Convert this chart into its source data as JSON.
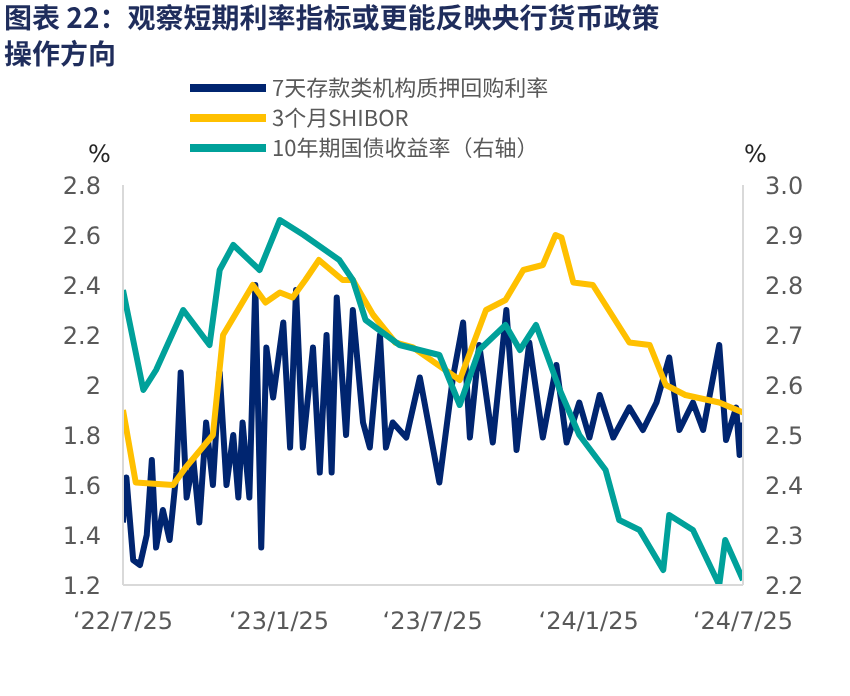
{
  "chart_data": {
    "type": "line",
    "title": "图表 22：观察短期利率指标或更能反映央行货币政策操作方向",
    "ylabel": "%",
    "y2label": "%",
    "xlim": [
      "2022-07-25",
      "2024-07-25"
    ],
    "xticks": [
      {
        "value": "2022-07-25",
        "label": "‘22/7/25"
      },
      {
        "value": "2023-01-25",
        "label": "‘23/1/25"
      },
      {
        "value": "2023-07-25",
        "label": "‘23/7/25"
      },
      {
        "value": "2024-01-25",
        "label": "‘24/1/25"
      },
      {
        "value": "2024-07-25",
        "label": "‘24/7/25"
      }
    ],
    "ylim": [
      1.2,
      2.8
    ],
    "yticks": [
      1.2,
      1.4,
      1.6,
      1.8,
      2,
      2.2,
      2.4,
      2.6,
      2.8
    ],
    "y2lim": [
      2.2,
      3.0
    ],
    "y2ticks": [
      {
        "value": 2.2,
        "label": "2.2"
      },
      {
        "value": 2.3,
        "label": "2.3"
      },
      {
        "value": 2.4,
        "label": "2.4"
      },
      {
        "value": 2.5,
        "label": "2.5"
      },
      {
        "value": 2.6,
        "label": "2.6"
      },
      {
        "value": 2.7,
        "label": "2.7"
      },
      {
        "value": 2.8,
        "label": "2.8"
      },
      {
        "value": 2.9,
        "label": "2.9"
      },
      {
        "value": 3.0,
        "label": "3.0"
      }
    ],
    "grid": false,
    "legend": "top left",
    "line_style": "solid",
    "marker": "none",
    "series": [
      {
        "name": "7天存款类机构质押回购利率",
        "color": "#002570",
        "x": [
          "2022-07-25",
          "2022-07-29",
          "2022-08-06",
          "2022-08-14",
          "2022-08-22",
          "2022-08-28",
          "2022-09-02",
          "2022-09-10",
          "2022-09-18",
          "2022-09-26",
          "2022-10-01",
          "2022-10-08",
          "2022-10-16",
          "2022-10-23",
          "2022-10-31",
          "2022-11-08",
          "2022-11-16",
          "2022-11-24",
          "2022-12-02",
          "2022-12-08",
          "2022-12-13",
          "2022-12-21",
          "2022-12-28",
          "2023-01-04",
          "2023-01-10",
          "2023-01-18",
          "2023-01-30",
          "2023-02-07",
          "2023-02-14",
          "2023-02-22",
          "2023-03-06",
          "2023-03-14",
          "2023-03-22",
          "2023-03-28",
          "2023-04-03",
          "2023-04-14",
          "2023-04-22",
          "2023-05-04",
          "2023-05-12",
          "2023-05-24",
          "2023-05-31",
          "2023-06-08",
          "2023-06-24",
          "2023-07-10",
          "2023-08-02",
          "2023-08-18",
          "2023-08-30",
          "2023-09-07",
          "2023-09-18",
          "2023-10-04",
          "2023-10-20",
          "2023-11-01",
          "2023-11-16",
          "2023-12-02",
          "2023-12-18",
          "2023-12-30",
          "2024-01-14",
          "2024-01-26",
          "2024-02-07",
          "2024-02-23",
          "2024-03-13",
          "2024-03-29",
          "2024-04-14",
          "2024-04-29",
          "2024-05-11",
          "2024-05-27",
          "2024-06-08",
          "2024-06-27",
          "2024-07-05",
          "2024-07-17",
          "2024-07-21",
          "2024-07-25"
        ],
        "values": [
          1.45,
          1.63,
          1.3,
          1.28,
          1.4,
          1.7,
          1.35,
          1.5,
          1.38,
          1.65,
          2.05,
          1.55,
          1.7,
          1.45,
          1.85,
          1.6,
          2.05,
          1.6,
          1.8,
          1.55,
          1.85,
          1.55,
          2.4,
          1.35,
          2.15,
          1.95,
          2.25,
          1.75,
          2.38,
          1.75,
          2.15,
          1.65,
          2.2,
          1.65,
          2.35,
          1.8,
          2.3,
          1.85,
          1.75,
          2.2,
          1.75,
          1.85,
          1.79,
          2.03,
          1.61,
          2.03,
          2.25,
          1.79,
          2.16,
          1.77,
          2.3,
          1.74,
          2.17,
          1.79,
          2.08,
          1.77,
          1.93,
          1.79,
          1.96,
          1.79,
          1.91,
          1.82,
          1.93,
          2.11,
          1.82,
          1.93,
          1.82,
          2.16,
          1.78,
          1.91,
          1.72,
          1.85
        ]
      },
      {
        "name": "3个月SHIBOR",
        "color": "#ffc000",
        "x": [
          "2022-07-25",
          "2022-08-09",
          "2022-09-22",
          "2022-10-07",
          "2022-11-08",
          "2022-11-20",
          "2022-12-25",
          "2023-01-09",
          "2023-01-26",
          "2023-02-10",
          "2023-02-25",
          "2023-03-13",
          "2023-04-10",
          "2023-04-22",
          "2023-05-16",
          "2023-06-11",
          "2023-07-02",
          "2023-08-26",
          "2023-09-26",
          "2023-10-19",
          "2023-11-09",
          "2023-12-02",
          "2023-12-17",
          "2023-12-24",
          "2024-01-07",
          "2024-01-30",
          "2024-03-13",
          "2024-04-06",
          "2024-04-25",
          "2024-05-18",
          "2024-06-27",
          "2024-07-25"
        ],
        "values": [
          1.9,
          1.61,
          1.6,
          1.67,
          1.8,
          2.2,
          2.4,
          2.33,
          2.37,
          2.35,
          2.42,
          2.5,
          2.42,
          2.42,
          2.28,
          2.17,
          2.15,
          2.02,
          2.3,
          2.34,
          2.46,
          2.48,
          2.6,
          2.59,
          2.41,
          2.4,
          2.17,
          2.16,
          2.0,
          1.96,
          1.93,
          1.89
        ]
      },
      {
        "name": "10年期国债收益率（右轴）",
        "color": "#00a19a",
        "axis": "y2",
        "x": [
          "2022-07-25",
          "2022-08-18",
          "2022-09-02",
          "2022-10-04",
          "2022-11-04",
          "2022-11-16",
          "2022-12-02",
          "2023-01-02",
          "2023-01-26",
          "2023-02-23",
          "2023-04-06",
          "2023-04-22",
          "2023-05-07",
          "2023-06-16",
          "2023-08-02",
          "2023-08-26",
          "2023-09-18",
          "2023-10-19",
          "2023-11-05",
          "2023-11-24",
          "2023-12-22",
          "2024-01-14",
          "2024-02-14",
          "2024-03-01",
          "2024-03-25",
          "2024-04-22",
          "2024-04-29",
          "2024-05-27",
          "2024-06-27",
          "2024-07-04",
          "2024-07-25"
        ],
        "values": [
          2.79,
          2.59,
          2.63,
          2.75,
          2.68,
          2.83,
          2.88,
          2.83,
          2.93,
          2.9,
          2.85,
          2.81,
          2.73,
          2.68,
          2.66,
          2.56,
          2.67,
          2.72,
          2.67,
          2.72,
          2.59,
          2.5,
          2.43,
          2.33,
          2.31,
          2.23,
          2.34,
          2.31,
          2.2,
          2.29,
          2.21
        ]
      }
    ]
  }
}
